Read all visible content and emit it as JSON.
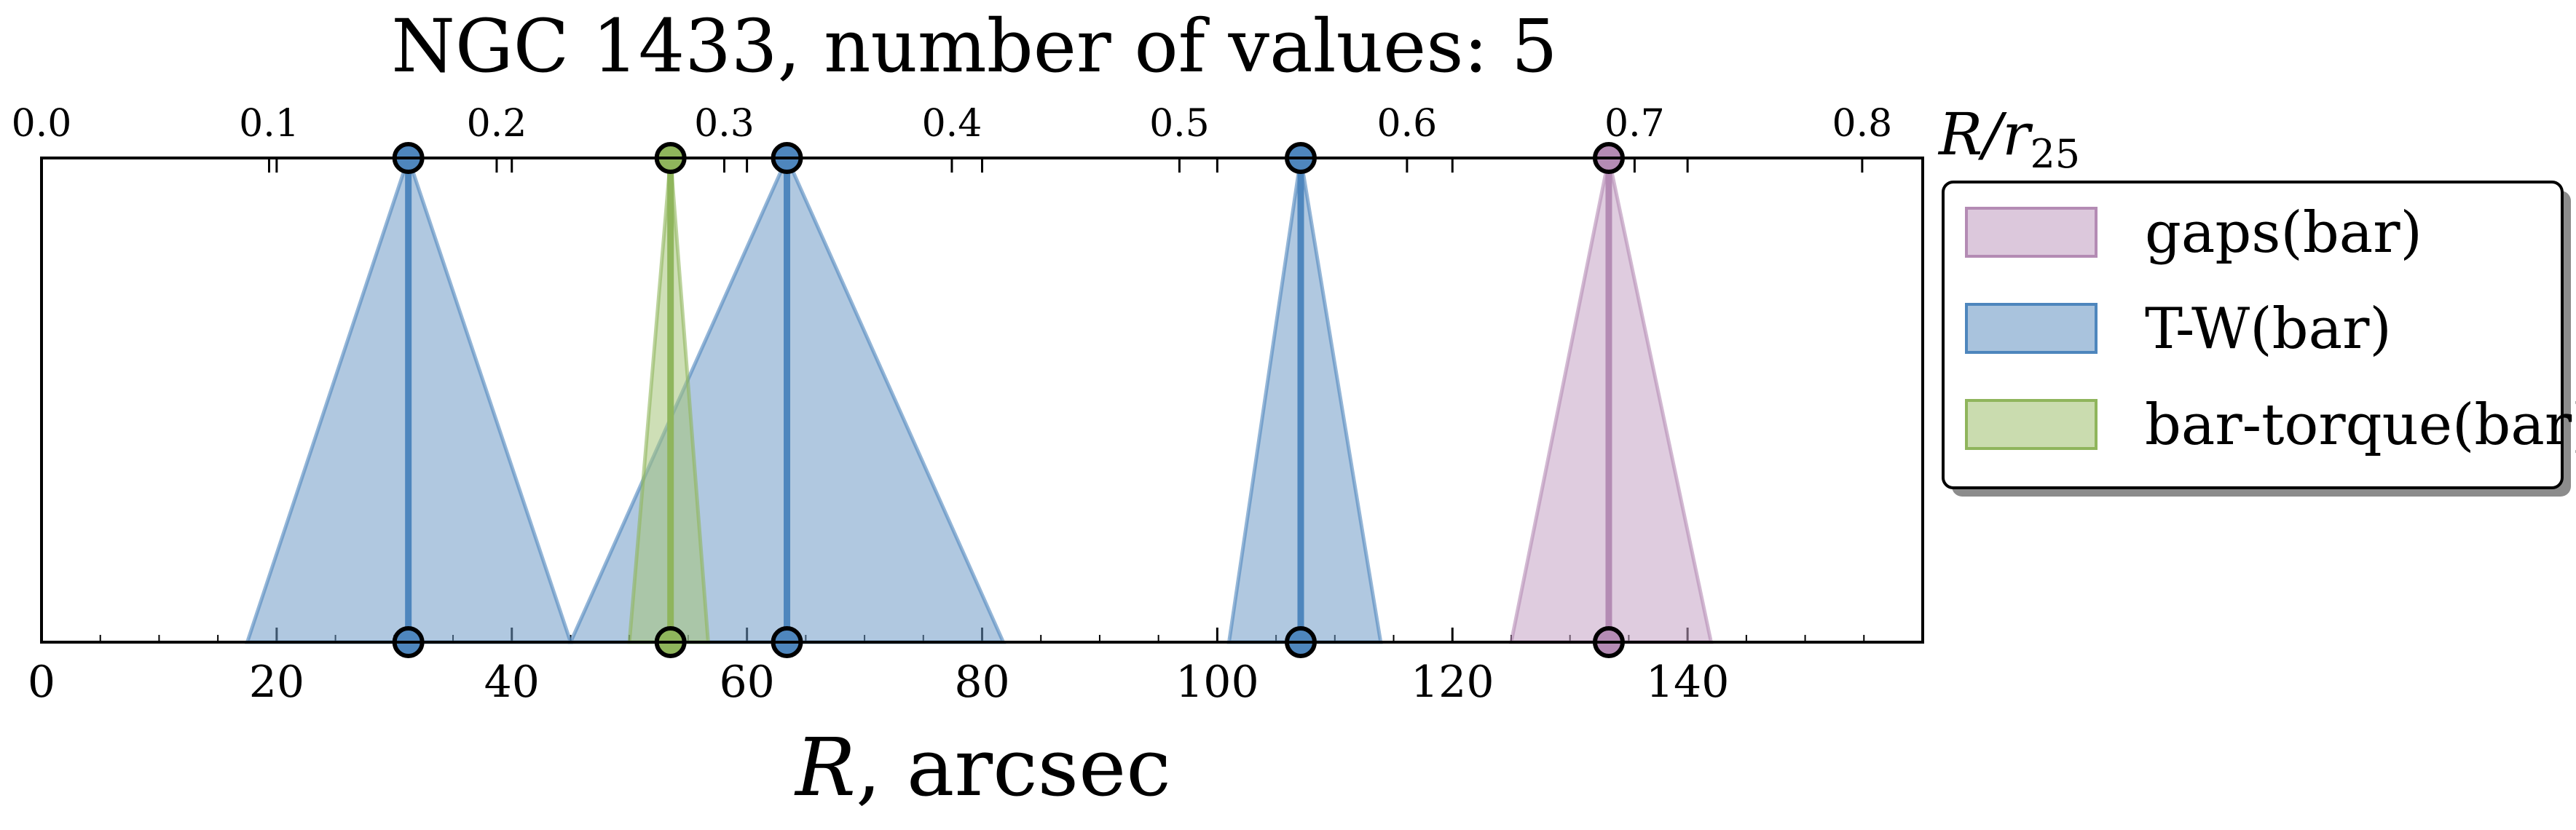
{
  "chart_data": {
    "type": "area",
    "title": "NGC 1433, number of values: 5",
    "xlabel_italic": "R",
    "xlabel_rest": ", arcsec",
    "top_axis_label_main": "R/r",
    "top_axis_label_sub": "25",
    "xlim": [
      0,
      160
    ],
    "x_ticks": [
      "0",
      "20",
      "40",
      "60",
      "80",
      "100",
      "120",
      "140"
    ],
    "x_tick_values": [
      0,
      20,
      40,
      60,
      80,
      100,
      120,
      140
    ],
    "top_xlim": [
      0,
      0.8266
    ],
    "top_ticks": [
      "0.0",
      "0.1",
      "0.2",
      "0.3",
      "0.4",
      "0.5",
      "0.6",
      "0.7",
      "0.8"
    ],
    "top_tick_values": [
      0.0,
      0.1,
      0.2,
      0.3,
      0.4,
      0.5,
      0.6,
      0.7,
      0.8
    ],
    "legend_placement": "outside-right",
    "series": [
      {
        "name": "gaps(bar)",
        "color": "#c4a3c4",
        "line_color": "#b48bb4",
        "items": [
          {
            "center": 133.3,
            "low": 125.0,
            "high": 142.0
          }
        ]
      },
      {
        "name": "T-W(bar)",
        "color": "#6f9bc7",
        "line_color": "#4e86bd",
        "items": [
          {
            "center": 31.2,
            "low": 17.5,
            "high": 45.0
          },
          {
            "center": 63.4,
            "low": 45.0,
            "high": 81.8
          },
          {
            "center": 107.1,
            "low": 101.0,
            "high": 113.9
          }
        ]
      },
      {
        "name": "bar-torque(bar)",
        "color": "#a6c47a",
        "line_color": "#8fb55c",
        "items": [
          {
            "center": 53.5,
            "low": 50.0,
            "high": 56.7
          }
        ]
      }
    ]
  }
}
